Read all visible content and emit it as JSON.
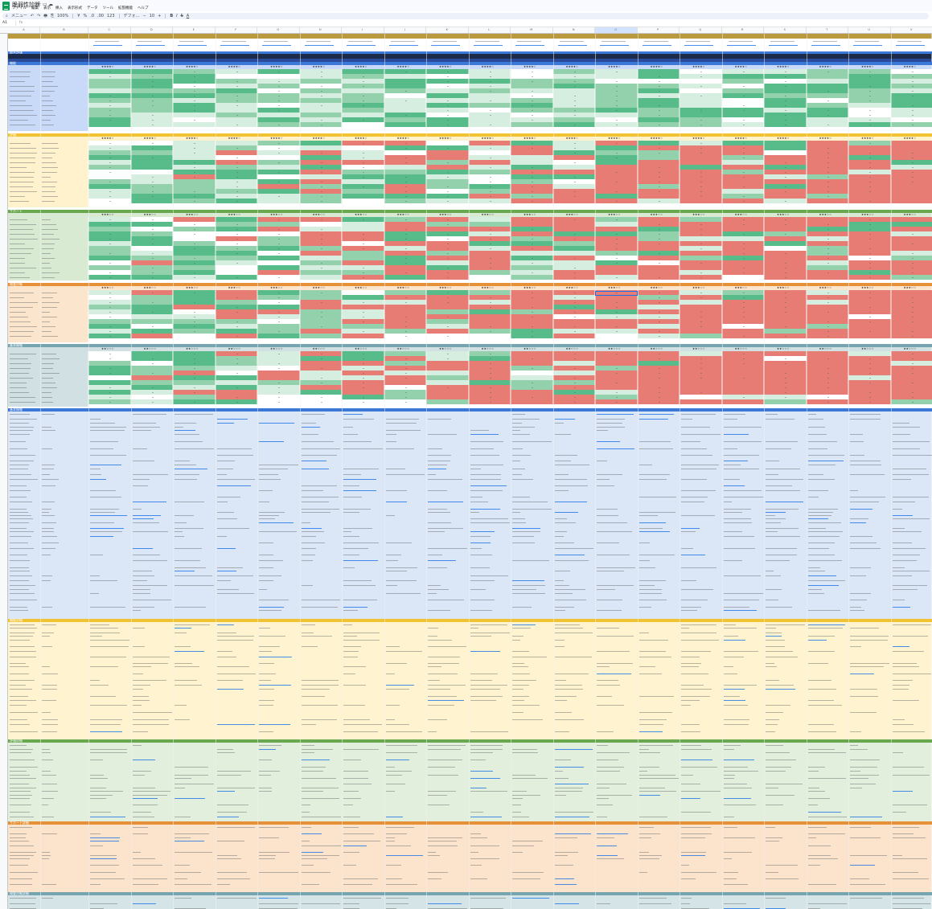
{
  "app": {
    "doc_title": "脆弱性診断",
    "menu": [
      "ファイル",
      "編集",
      "表示",
      "挿入",
      "表示形式",
      "データ",
      "ツール",
      "拡張機能",
      "ヘルプ"
    ],
    "toolbar": [
      "⌕",
      "メニュー",
      "↶",
      "↷",
      "🖶",
      "⎘",
      "100%",
      "¥",
      "%",
      ".0",
      ".00",
      "123",
      "デフォ…",
      "−",
      "10",
      "+",
      "B",
      "I",
      "S",
      "A"
    ],
    "name_box": "A1",
    "fx": "fx",
    "formula_value": "",
    "colors": {
      "title_gold": "#b99a3e",
      "sec_blue": "#3c78d8",
      "sec_yellow": "#f1c232",
      "sec_green": "#6aa84f",
      "sec_orange": "#e69138",
      "sec_teal": "#76a5af",
      "band_blue": "#c9daf8",
      "band_yellow": "#fff2cc",
      "band_green": "#d9ead3",
      "band_orange": "#fce5cd",
      "band_teal": "#d0e0e3",
      "good_dark": "#57bb8a",
      "good_mid": "#93d1ad",
      "good_light": "#d6eedf",
      "bad": "#e67c73"
    }
  },
  "columns": [
    "A",
    "B",
    "C",
    "D",
    "E",
    "F",
    "G",
    "H",
    "I",
    "J",
    "K",
    "L",
    "M",
    "N",
    "O",
    "P",
    "Q",
    "R",
    "S",
    "T",
    "U",
    "V"
  ],
  "sections": {
    "s0": "総合評価",
    "s1": "機能",
    "s2": "評価",
    "s3": "サポート",
    "s4": "検査対象",
    "s5": "基本情報",
    "s6": "機能詳細",
    "s7": "評価詳細",
    "s8": "サポート詳細",
    "s9": "検査対象詳細"
  },
  "ratings": {
    "r1": "★★★★☆",
    "r2": "★★★☆☆",
    "r3": "★★☆☆☆"
  }
}
